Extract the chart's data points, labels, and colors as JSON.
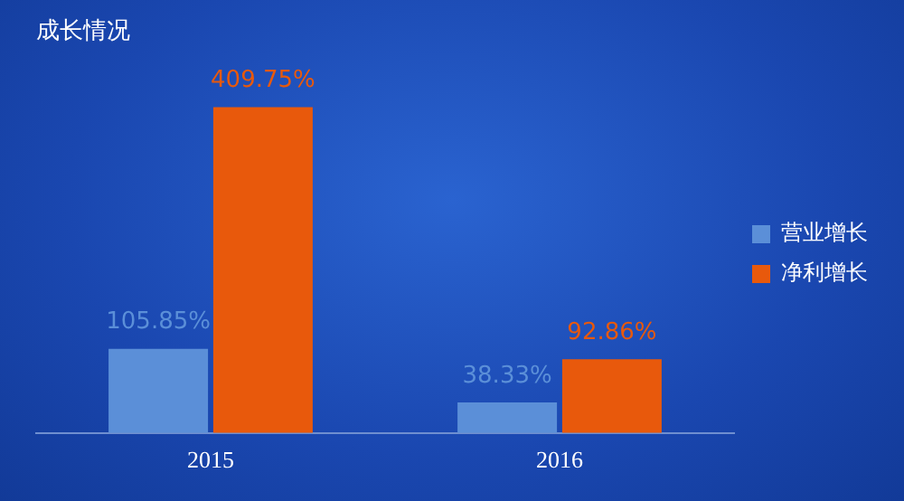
{
  "chart_data": {
    "type": "bar",
    "title": "成长情况",
    "categories": [
      "2015",
      "2016"
    ],
    "series": [
      {
        "name": "营业增长",
        "color": "#5b8fd8",
        "values": [
          105.85,
          38.33
        ],
        "value_labels": [
          "105.85%",
          "38.33%"
        ]
      },
      {
        "name": "净利增长",
        "color": "#e8590c",
        "values": [
          409.75,
          92.86
        ],
        "value_labels": [
          "409.75%",
          "92.86%"
        ]
      }
    ],
    "legend": "right",
    "grid": false
  }
}
